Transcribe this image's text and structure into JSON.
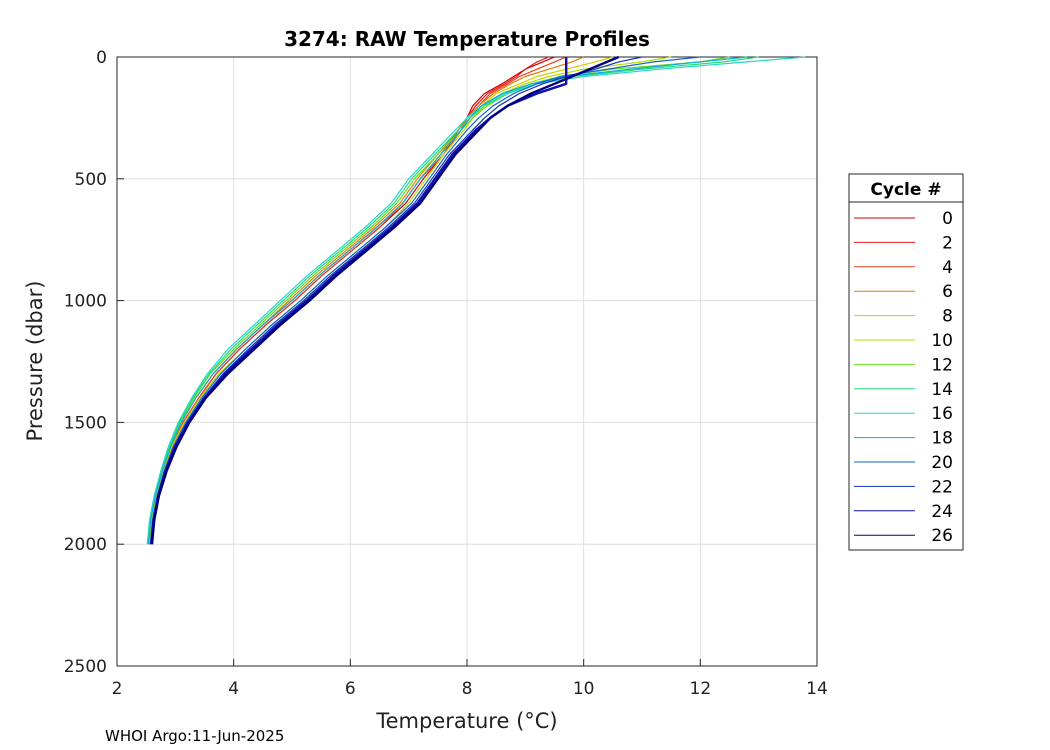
{
  "chart_data": {
    "type": "line",
    "title": "3274: RAW Temperature Profiles",
    "xlabel": "Temperature (°C)",
    "ylabel": "Pressure (dbar)",
    "xlim": [
      2,
      14
    ],
    "ylim": [
      0,
      2500
    ],
    "y_reversed": true,
    "grid": true,
    "x_ticks": [
      "2",
      "4",
      "6",
      "8",
      "10",
      "12",
      "14"
    ],
    "y_ticks": [
      "0",
      "500",
      "1000",
      "1500",
      "2000",
      "2500"
    ],
    "legend": {
      "title": "Cycle #",
      "placement": "right",
      "entries": [
        "0",
        "2",
        "4",
        "6",
        "8",
        "10",
        "12",
        "14",
        "16",
        "18",
        "20",
        "22",
        "24",
        "26"
      ]
    },
    "credit": "WHOI Argo:11-Jun-2025",
    "pressure_levels": [
      0,
      20,
      50,
      80,
      110,
      150,
      200,
      250,
      300,
      400,
      500,
      600,
      700,
      800,
      900,
      1000,
      1100,
      1200,
      1300,
      1400,
      1500,
      1600,
      1700,
      1800,
      1900,
      2000
    ],
    "series": [
      {
        "name": "0",
        "color": "#cc0000",
        "temperature": [
          9.5,
          9.3,
          9.0,
          8.8,
          8.6,
          8.3,
          8.1,
          8.0,
          7.85,
          7.6,
          7.25,
          6.95,
          6.5,
          6.0,
          5.5,
          5.05,
          4.55,
          4.1,
          3.7,
          3.4,
          3.15,
          2.95,
          2.8,
          2.68,
          2.6,
          2.55
        ]
      },
      {
        "name": "2",
        "color": "#e31a1c",
        "temperature": [
          9.4,
          9.2,
          9.0,
          8.85,
          8.65,
          8.35,
          8.15,
          8.0,
          7.85,
          7.55,
          7.2,
          6.9,
          6.45,
          5.95,
          5.45,
          5.0,
          4.5,
          4.05,
          3.65,
          3.35,
          3.1,
          2.93,
          2.78,
          2.66,
          2.58,
          2.54
        ]
      },
      {
        "name": "4",
        "color": "#f03b20",
        "temperature": [
          9.7,
          9.5,
          9.2,
          8.9,
          8.7,
          8.4,
          8.2,
          8.0,
          7.9,
          7.6,
          7.2,
          6.9,
          6.5,
          6.0,
          5.5,
          5.05,
          4.55,
          4.1,
          3.7,
          3.4,
          3.13,
          2.94,
          2.79,
          2.67,
          2.59,
          2.55
        ]
      },
      {
        "name": "6",
        "color": "#e08000",
        "temperature": [
          10.0,
          9.8,
          9.4,
          9.0,
          8.75,
          8.45,
          8.2,
          8.0,
          7.85,
          7.5,
          7.15,
          6.85,
          6.4,
          5.9,
          5.4,
          4.95,
          4.5,
          4.05,
          3.65,
          3.35,
          3.1,
          2.92,
          2.78,
          2.66,
          2.58,
          2.54
        ]
      },
      {
        "name": "8",
        "color": "#d8c800",
        "temperature": [
          10.5,
          10.2,
          9.7,
          9.2,
          8.9,
          8.5,
          8.25,
          8.05,
          7.9,
          7.55,
          7.2,
          6.9,
          6.45,
          5.95,
          5.45,
          5.0,
          4.5,
          4.05,
          3.65,
          3.35,
          3.1,
          2.92,
          2.78,
          2.66,
          2.58,
          2.54
        ]
      },
      {
        "name": "10",
        "color": "#b8dc00",
        "temperature": [
          11.5,
          11.0,
          10.0,
          9.4,
          9.0,
          8.6,
          8.3,
          8.1,
          7.95,
          7.6,
          7.3,
          7.0,
          6.6,
          6.1,
          5.6,
          5.15,
          4.65,
          4.2,
          3.75,
          3.42,
          3.15,
          2.94,
          2.79,
          2.67,
          2.59,
          2.55
        ]
      },
      {
        "name": "12",
        "color": "#66dd22",
        "temperature": [
          12.5,
          12.0,
          10.5,
          9.6,
          9.1,
          8.7,
          8.35,
          8.1,
          7.9,
          7.5,
          7.1,
          6.8,
          6.35,
          5.85,
          5.35,
          4.9,
          4.45,
          4.0,
          3.6,
          3.32,
          3.08,
          2.9,
          2.76,
          2.65,
          2.57,
          2.53
        ]
      },
      {
        "name": "14",
        "color": "#22dd77",
        "temperature": [
          13.0,
          12.4,
          11.0,
          9.8,
          9.2,
          8.7,
          8.3,
          8.05,
          7.85,
          7.45,
          7.05,
          6.75,
          6.3,
          5.8,
          5.3,
          4.85,
          4.4,
          3.95,
          3.58,
          3.3,
          3.07,
          2.9,
          2.76,
          2.64,
          2.56,
          2.52
        ]
      },
      {
        "name": "16",
        "color": "#22d8cc",
        "temperature": [
          13.8,
          12.8,
          11.3,
          10.0,
          9.2,
          8.65,
          8.25,
          8.0,
          7.8,
          7.4,
          7.0,
          6.7,
          6.25,
          5.75,
          5.25,
          4.8,
          4.35,
          3.9,
          3.55,
          3.28,
          3.05,
          2.88,
          2.75,
          2.64,
          2.56,
          2.52
        ]
      },
      {
        "name": "18",
        "color": "#11aadd",
        "temperature": [
          12.8,
          12.0,
          10.8,
          9.7,
          9.1,
          8.6,
          8.25,
          8.05,
          7.9,
          7.55,
          7.2,
          6.9,
          6.45,
          5.95,
          5.45,
          5.0,
          4.5,
          4.05,
          3.65,
          3.35,
          3.1,
          2.92,
          2.78,
          2.66,
          2.58,
          2.54
        ]
      },
      {
        "name": "20",
        "color": "#1166cc",
        "temperature": [
          12.0,
          11.2,
          10.4,
          9.6,
          9.2,
          8.8,
          8.45,
          8.2,
          8.0,
          7.65,
          7.35,
          7.05,
          6.6,
          6.1,
          5.6,
          5.15,
          4.65,
          4.2,
          3.78,
          3.45,
          3.18,
          2.97,
          2.81,
          2.69,
          2.61,
          2.57
        ]
      },
      {
        "name": "22",
        "color": "#1133bb",
        "temperature": [
          11.0,
          10.6,
          10.2,
          9.7,
          9.3,
          8.9,
          8.55,
          8.3,
          8.1,
          7.7,
          7.4,
          7.1,
          6.65,
          6.15,
          5.65,
          5.2,
          4.7,
          4.25,
          3.82,
          3.48,
          3.2,
          2.98,
          2.82,
          2.7,
          2.62,
          2.58
        ]
      },
      {
        "name": "24",
        "color": "#1111aa",
        "temperature": [
          9.7,
          9.7,
          9.7,
          9.7,
          9.7,
          9.2,
          8.7,
          8.4,
          8.15,
          7.75,
          7.45,
          7.15,
          6.7,
          6.2,
          5.7,
          5.25,
          4.75,
          4.3,
          3.85,
          3.5,
          3.22,
          3.0,
          2.83,
          2.71,
          2.63,
          2.59
        ]
      },
      {
        "name": "26",
        "color": "#000080",
        "temperature": [
          10.6,
          10.4,
          10.1,
          9.8,
          9.5,
          9.1,
          8.7,
          8.4,
          8.2,
          7.8,
          7.5,
          7.2,
          6.75,
          6.25,
          5.75,
          5.3,
          4.8,
          4.35,
          3.9,
          3.52,
          3.24,
          3.02,
          2.85,
          2.72,
          2.64,
          2.6
        ]
      }
    ]
  }
}
